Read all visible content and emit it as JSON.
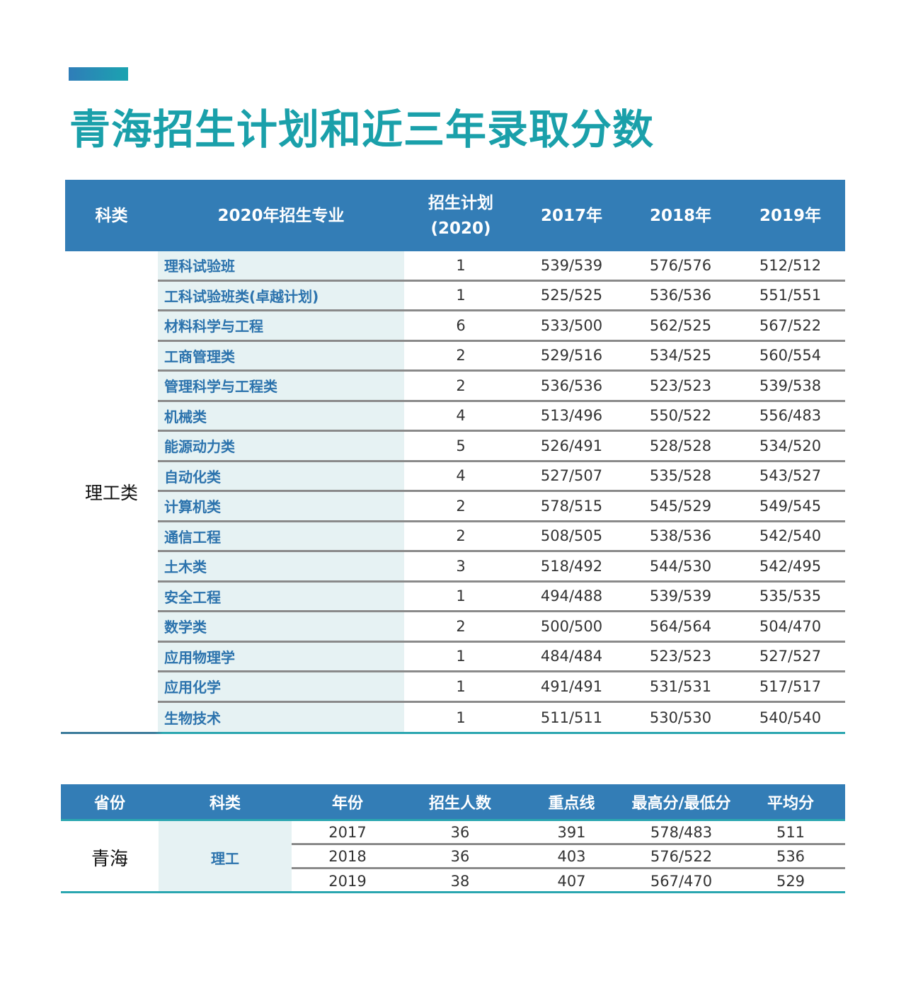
{
  "header": {
    "title": "青海招生计划和近三年录取分数",
    "accent_color": "#1aa0aa",
    "table_header_color": "#337db6"
  },
  "plan_table": {
    "columns": {
      "category": "科类",
      "major": "2020年招生专业",
      "plan_line1": "招生计划",
      "plan_line2": "(2020)",
      "y2017": "2017年",
      "y2018": "2018年",
      "y2019": "2019年"
    },
    "category_value": "理工类",
    "rows": [
      {
        "major": "理科试验班",
        "plan": "1",
        "y2017": "539/539",
        "y2018": "576/576",
        "y2019": "512/512"
      },
      {
        "major": "工科试验班类(卓越计划)",
        "plan": "1",
        "y2017": "525/525",
        "y2018": "536/536",
        "y2019": "551/551"
      },
      {
        "major": "材料科学与工程",
        "plan": "6",
        "y2017": "533/500",
        "y2018": "562/525",
        "y2019": "567/522"
      },
      {
        "major": "工商管理类",
        "plan": "2",
        "y2017": "529/516",
        "y2018": "534/525",
        "y2019": "560/554"
      },
      {
        "major": "管理科学与工程类",
        "plan": "2",
        "y2017": "536/536",
        "y2018": "523/523",
        "y2019": "539/538"
      },
      {
        "major": "机械类",
        "plan": "4",
        "y2017": "513/496",
        "y2018": "550/522",
        "y2019": "556/483"
      },
      {
        "major": "能源动力类",
        "plan": "5",
        "y2017": "526/491",
        "y2018": "528/528",
        "y2019": "534/520"
      },
      {
        "major": "自动化类",
        "plan": "4",
        "y2017": "527/507",
        "y2018": "535/528",
        "y2019": "543/527"
      },
      {
        "major": "计算机类",
        "plan": "2",
        "y2017": "578/515",
        "y2018": "545/529",
        "y2019": "549/545"
      },
      {
        "major": "通信工程",
        "plan": "2",
        "y2017": "508/505",
        "y2018": "538/536",
        "y2019": "542/540"
      },
      {
        "major": "土木类",
        "plan": "3",
        "y2017": "518/492",
        "y2018": "544/530",
        "y2019": "542/495"
      },
      {
        "major": "安全工程",
        "plan": "1",
        "y2017": "494/488",
        "y2018": "539/539",
        "y2019": "535/535"
      },
      {
        "major": "数学类",
        "plan": "2",
        "y2017": "500/500",
        "y2018": "564/564",
        "y2019": "504/470"
      },
      {
        "major": "应用物理学",
        "plan": "1",
        "y2017": "484/484",
        "y2018": "523/523",
        "y2019": "527/527"
      },
      {
        "major": "应用化学",
        "plan": "1",
        "y2017": "491/491",
        "y2018": "531/531",
        "y2019": "517/517"
      },
      {
        "major": "生物技术",
        "plan": "1",
        "y2017": "511/511",
        "y2018": "530/530",
        "y2019": "540/540"
      }
    ]
  },
  "summary_table": {
    "columns": {
      "province": "省份",
      "category": "科类",
      "year": "年份",
      "count": "招生人数",
      "key_line": "重点线",
      "range": "最高分/最低分",
      "average": "平均分"
    },
    "province_value": "青海",
    "category_value": "理工",
    "rows": [
      {
        "year": "2017",
        "count": "36",
        "key_line": "391",
        "range": "578/483",
        "average": "511"
      },
      {
        "year": "2018",
        "count": "36",
        "key_line": "403",
        "range": "576/522",
        "average": "536"
      },
      {
        "year": "2019",
        "count": "38",
        "key_line": "407",
        "range": "567/470",
        "average": "529"
      }
    ]
  }
}
